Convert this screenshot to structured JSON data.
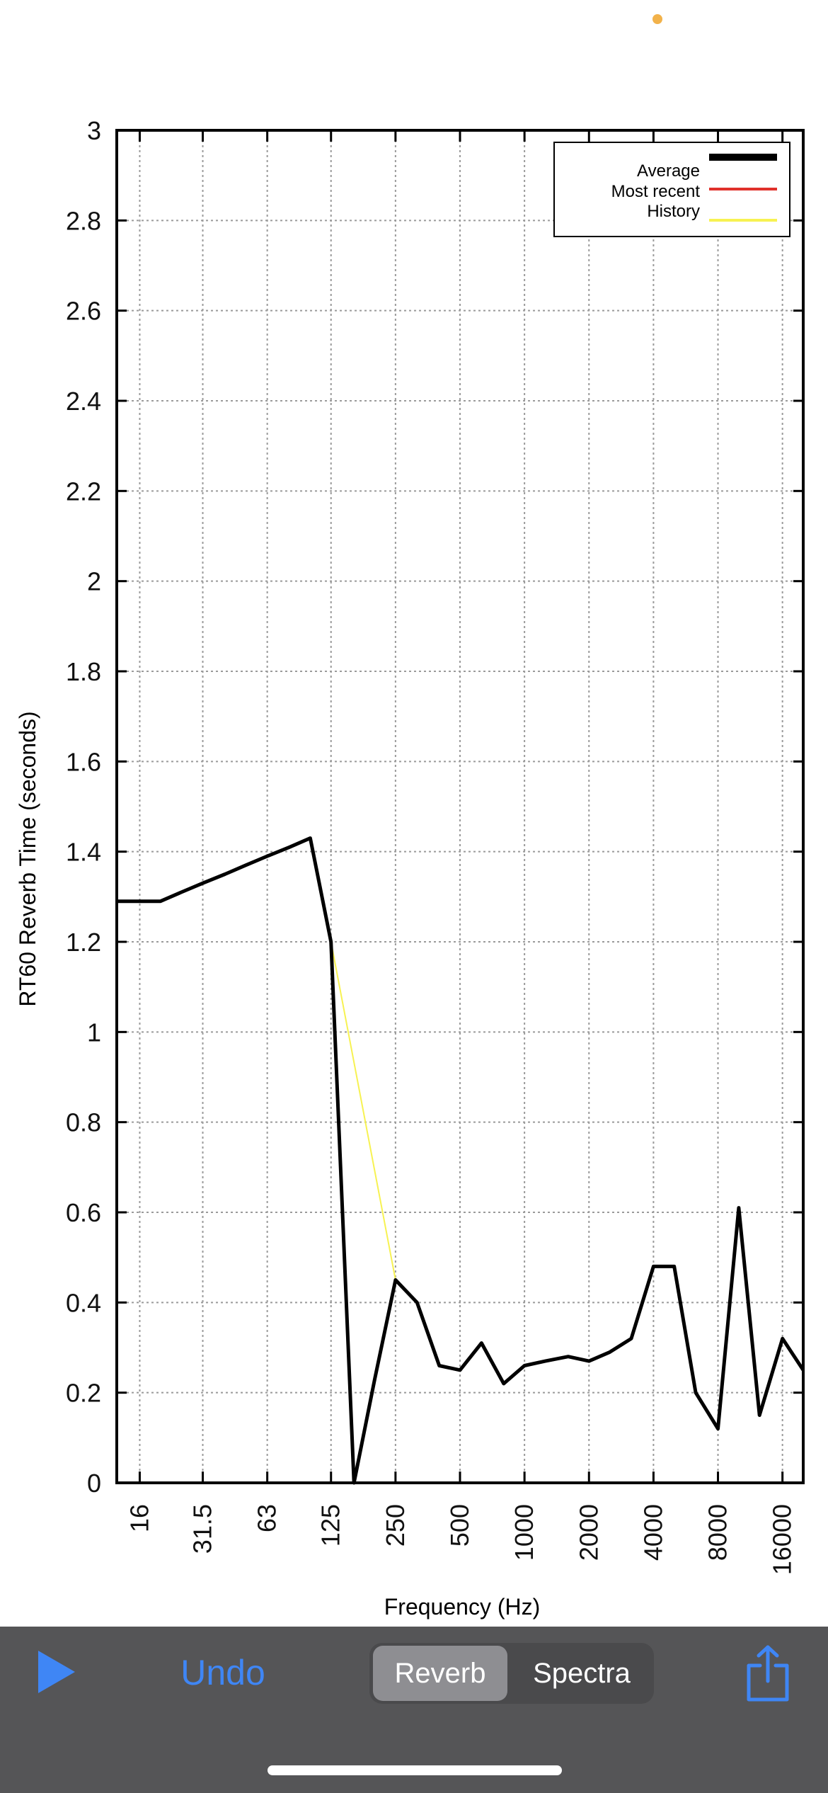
{
  "status": {
    "dot_color": "#f2b24a"
  },
  "chart_data": {
    "type": "line",
    "ylabel": "RT60 Reverb Time (seconds)",
    "xlabel": "Frequency (Hz)",
    "ylim": [
      0,
      3
    ],
    "x_scale": "log2",
    "grid": true,
    "legend_placement": "top-right",
    "x_tick_values": [
      16,
      31.5,
      63,
      125,
      250,
      500,
      1000,
      2000,
      4000,
      8000,
      16000
    ],
    "x_tick_labels": [
      "16",
      "31.5",
      "63",
      "125",
      "250",
      "500",
      "1000",
      "2000",
      "4000",
      "8000",
      "16000"
    ],
    "y_tick_values": [
      0,
      0.2,
      0.4,
      0.6,
      0.8,
      1,
      1.2,
      1.4,
      1.6,
      1.8,
      2,
      2.2,
      2.4,
      2.6,
      2.8,
      3
    ],
    "y_tick_labels": [
      "0",
      "0.2",
      "0.4",
      "0.6",
      "0.8",
      "1",
      "1.2",
      "1.4",
      "1.6",
      "1.8",
      "2",
      "2.2",
      "2.4",
      "2.6",
      "2.8",
      "3"
    ],
    "series": [
      {
        "name": "Average",
        "color": "#000000",
        "x": [
          12.5,
          16,
          20,
          25,
          31.5,
          40,
          50,
          63,
          80,
          100,
          125,
          160,
          200,
          250,
          315,
          400,
          500,
          630,
          800,
          1000,
          1250,
          1600,
          2000,
          2500,
          3150,
          4000,
          5000,
          6300,
          8000,
          10000,
          12500,
          16000,
          20000
        ],
        "values": [
          1.29,
          1.29,
          1.29,
          1.31,
          1.33,
          1.35,
          1.37,
          1.39,
          1.41,
          1.43,
          1.2,
          0.0,
          0.23,
          0.45,
          0.4,
          0.26,
          0.25,
          0.31,
          0.22,
          0.26,
          0.27,
          0.28,
          0.27,
          0.29,
          0.32,
          0.48,
          0.48,
          0.2,
          0.12,
          0.61,
          0.15,
          0.32,
          0.25
        ]
      },
      {
        "name": "Most recent",
        "color": "#e0312b",
        "x": [],
        "values": []
      },
      {
        "name": "History",
        "color": "#f7f252",
        "x": [
          125,
          250
        ],
        "values": [
          1.2,
          0.45
        ]
      }
    ]
  },
  "toolbar": {
    "background": "#555557",
    "accent": "#3f86f5",
    "play_icon": "play-icon",
    "undo_label": "Undo",
    "segments": [
      "Reverb",
      "Spectra"
    ],
    "selected_segment": "Reverb",
    "share_icon": "share-icon"
  }
}
